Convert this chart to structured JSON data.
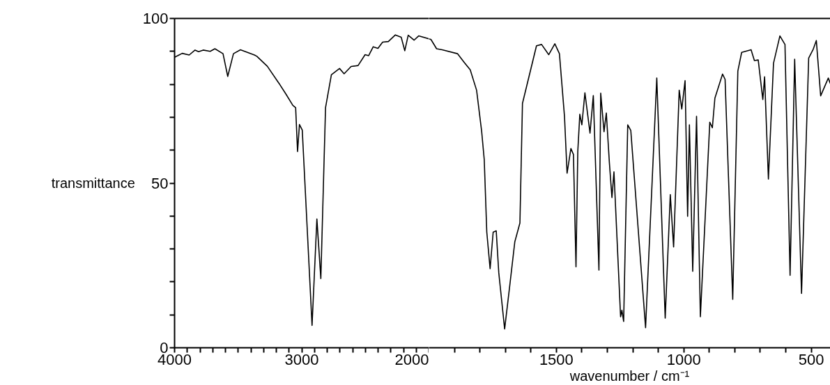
{
  "chart_data": [
    {
      "type": "line",
      "ylabel": "transmittance",
      "xlim": [
        4000,
        2000
      ],
      "ylim": [
        0,
        100
      ],
      "xticks": [
        4000,
        {
          "value": 3900,
          "label": null
        },
        {
          "value": 3800,
          "label": null
        },
        {
          "value": 3700,
          "label": null
        },
        {
          "value": 3600,
          "label": null
        },
        {
          "value": 3500,
          "label": null
        },
        {
          "value": 3400,
          "label": null
        },
        {
          "value": 3300,
          "label": null
        },
        {
          "value": 3200,
          "label": null
        },
        {
          "value": 3100,
          "label": null
        },
        3000,
        {
          "value": 2900,
          "label": null
        },
        {
          "value": 2800,
          "label": null
        },
        {
          "value": 2700,
          "label": null
        },
        {
          "value": 2600,
          "label": null
        },
        {
          "value": 2500,
          "label": null
        },
        {
          "value": 2400,
          "label": null
        },
        {
          "value": 2300,
          "label": null
        },
        {
          "value": 2200,
          "label": null
        },
        {
          "value": 2100,
          "label": null
        },
        2000
      ],
      "yticks": [
        0,
        {
          "value": 10,
          "label": null
        },
        {
          "value": 20,
          "label": null
        },
        {
          "value": 30,
          "label": null
        },
        {
          "value": 40,
          "label": null
        },
        50,
        {
          "value": 60,
          "label": null
        },
        {
          "value": 70,
          "label": null
        },
        {
          "value": 80,
          "label": null
        },
        {
          "value": 90,
          "label": null
        },
        100
      ],
      "series": [
        {
          "color": "#000000",
          "x": [
            4000,
            3940,
            3885,
            3839,
            3811,
            3775,
            3720,
            3683,
            3619,
            3582,
            3537,
            3482,
            3372,
            3353,
            3271,
            3179,
            3124,
            3070,
            3048,
            3033,
            3018,
            2996,
            2919,
            2881,
            2850,
            2813,
            2767,
            2703,
            2667,
            2612,
            2557,
            2502,
            2474,
            2438,
            2401,
            2364,
            2319,
            2264,
            2218,
            2190,
            2163,
            2117,
            2081,
            2000
          ],
          "values": [
            88.2,
            89.4,
            88.9,
            90.4,
            89.9,
            90.4,
            90.0,
            90.8,
            89.3,
            82.4,
            89.3,
            90.5,
            88.9,
            88.5,
            85.5,
            80.3,
            77.0,
            73.6,
            72.9,
            59.6,
            67.8,
            66.1,
            6.8,
            39.1,
            21.0,
            72.9,
            82.9,
            84.8,
            83.2,
            85.4,
            85.7,
            89.0,
            88.7,
            91.4,
            90.9,
            92.8,
            93.0,
            95.0,
            94.3,
            90.2,
            94.9,
            93.4,
            94.7,
            93.8
          ]
        }
      ]
    },
    {
      "type": "line",
      "xlabel": "wavenumber / cm⁻¹",
      "xlim": [
        2000,
        425
      ],
      "ylim": [
        0,
        100
      ],
      "tick_labels": "x",
      "xticks": [
        {
          "value": 1900,
          "label": null
        },
        {
          "value": 1800,
          "label": null
        },
        {
          "value": 1700,
          "label": null
        },
        {
          "value": 1600,
          "label": null
        },
        1500,
        {
          "value": 1400,
          "label": null
        },
        {
          "value": 1300,
          "label": null
        },
        {
          "value": 1200,
          "label": null
        },
        {
          "value": 1100,
          "label": null
        },
        1000,
        {
          "value": 900,
          "label": null
        },
        {
          "value": 800,
          "label": null
        },
        {
          "value": 700,
          "label": null
        },
        {
          "value": 600,
          "label": null
        },
        500
      ],
      "series": [
        {
          "color": "#000000",
          "x": [
            2000,
            1992,
            1970,
            1948,
            1888,
            1863,
            1838,
            1813,
            1793,
            1783,
            1773,
            1760,
            1748,
            1736,
            1726,
            1703,
            1683,
            1663,
            1643,
            1633,
            1578,
            1558,
            1530,
            1506,
            1488,
            1468,
            1458,
            1443,
            1433,
            1423,
            1416,
            1408,
            1400,
            1388,
            1368,
            1355,
            1333,
            1326,
            1313,
            1304,
            1292,
            1282,
            1274,
            1248,
            1243,
            1236,
            1220,
            1208,
            1150,
            1106,
            1073,
            1053,
            1040,
            1018,
            1008,
            995,
            985,
            978,
            965,
            950,
            935,
            898,
            888,
            878,
            848,
            838,
            808,
            788,
            773,
            736,
            723,
            708,
            690,
            683,
            668,
            648,
            623,
            603,
            583,
            565,
            538,
            510,
            493,
            480,
            463,
            433,
            425
          ],
          "values": [
            93.8,
            93.6,
            90.8,
            90.5,
            89.3,
            86.8,
            84.4,
            78.2,
            65.6,
            57.1,
            35.1,
            24.0,
            35.1,
            35.5,
            22.8,
            5.7,
            18.8,
            32.2,
            37.9,
            74.2,
            91.7,
            92.1,
            89.0,
            92.3,
            89.3,
            70.1,
            53.0,
            60.5,
            58.7,
            24.6,
            59.5,
            70.9,
            67.7,
            77.4,
            65.2,
            76.6,
            23.6,
            77.3,
            65.6,
            71.3,
            56.2,
            45.6,
            53.4,
            9.4,
            11.4,
            8.0,
            67.7,
            66.0,
            6.1,
            81.9,
            9.0,
            46.5,
            30.6,
            78.2,
            72.5,
            81.1,
            39.9,
            67.7,
            23.2,
            70.3,
            9.4,
            68.5,
            66.8,
            75.8,
            83.1,
            81.5,
            14.7,
            84.0,
            89.7,
            90.5,
            87.2,
            87.4,
            75.4,
            82.3,
            51.2,
            86.4,
            94.7,
            92.1,
            22.0,
            87.6,
            16.5,
            88.0,
            90.5,
            93.3,
            76.5,
            81.9,
            80.2
          ]
        }
      ]
    }
  ]
}
